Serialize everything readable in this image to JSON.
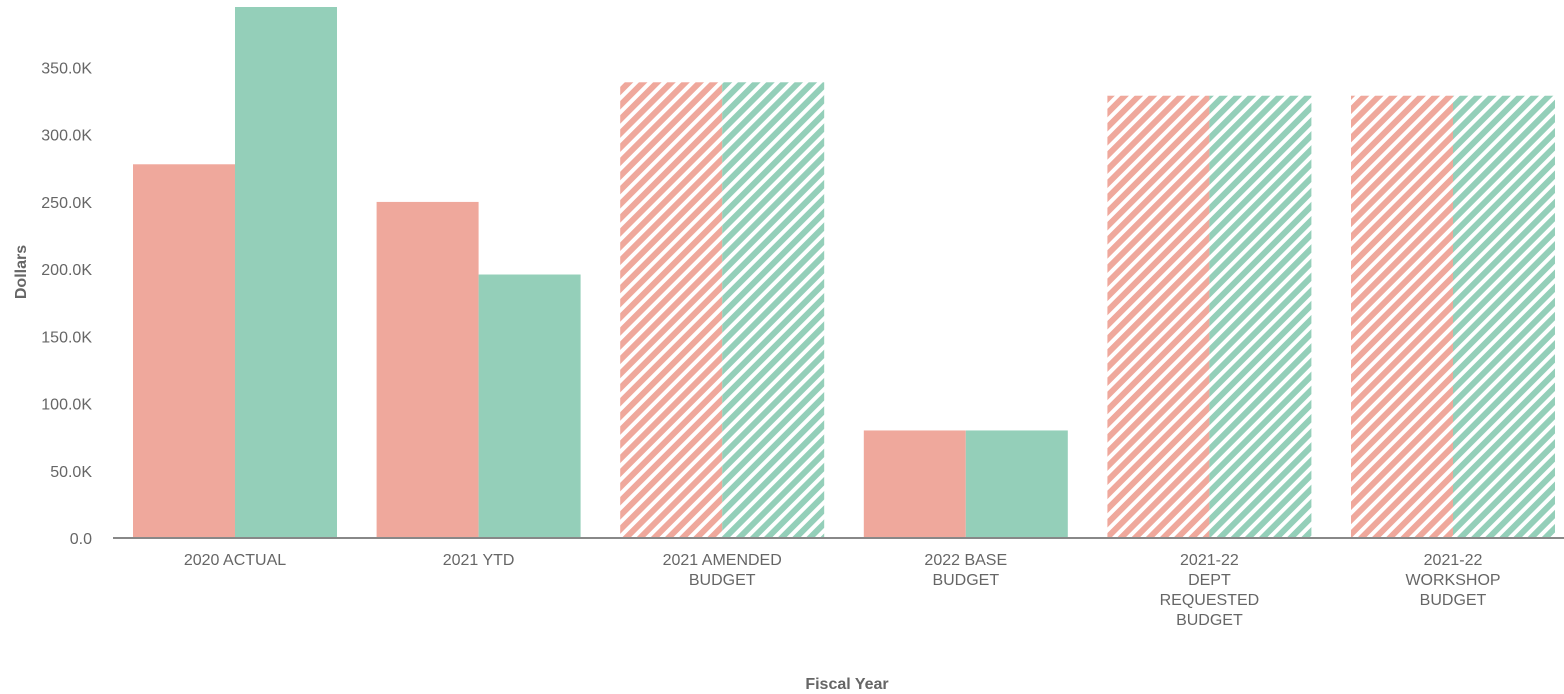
{
  "chart_data": {
    "type": "bar",
    "title": "",
    "xlabel": "Fiscal Year",
    "ylabel": "Dollars",
    "ylim": [
      0,
      395000
    ],
    "yticks": [
      0,
      50000,
      100000,
      150000,
      200000,
      250000,
      300000,
      350000
    ],
    "ytick_labels": [
      "0.0",
      "50.0K",
      "100.0K",
      "150.0K",
      "200.0K",
      "250.0K",
      "300.0K",
      "350.0K"
    ],
    "grid": false,
    "legend": "none",
    "categories": [
      [
        "2020 ACTUAL"
      ],
      [
        "2021 YTD"
      ],
      [
        "2021 AMENDED",
        "BUDGET"
      ],
      [
        "2022 BASE",
        "BUDGET"
      ],
      [
        "2021-22",
        "DEPT",
        "REQUESTED",
        "BUDGET"
      ],
      [
        "2021-22",
        "WORKSHOP",
        "BUDGET"
      ]
    ],
    "hatched": [
      false,
      false,
      true,
      false,
      true,
      true
    ],
    "series": [
      {
        "color": "#efa89c",
        "values": [
          278000,
          250000,
          339000,
          80000,
          329000,
          329000
        ]
      },
      {
        "color": "#94cfb9",
        "values": [
          395000,
          196000,
          339000,
          80000,
          329000,
          329000
        ]
      }
    ]
  }
}
